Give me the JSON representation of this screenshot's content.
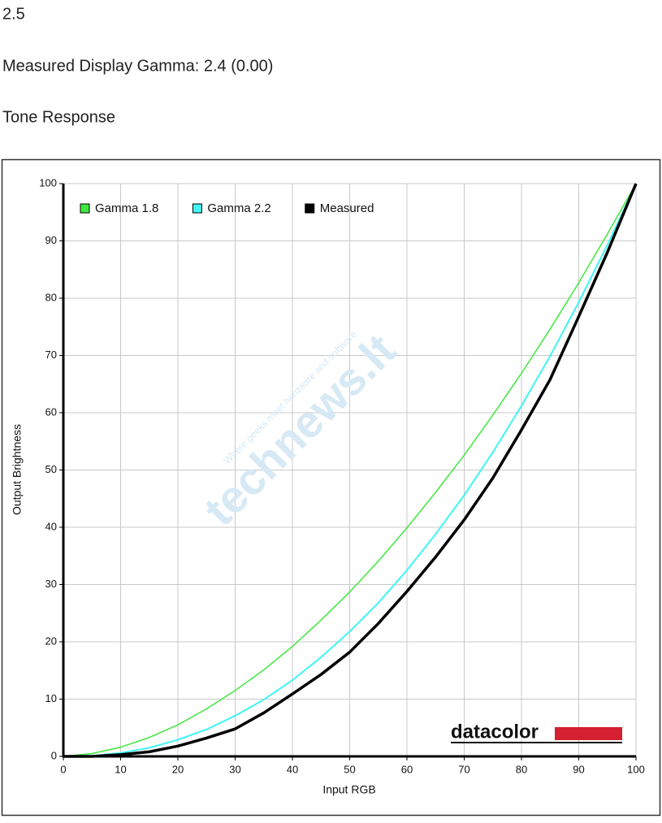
{
  "heading": "2.5",
  "measured_gamma": "Measured Display Gamma: 2.4 (0.00)",
  "section_title": "Tone Response",
  "watermark": {
    "brand": "technews.lt",
    "tagline": "Where geeks meet hardware and software"
  },
  "logo": "datacolor",
  "chart_data": {
    "type": "line",
    "x_label": "Input RGB",
    "y_label": "Output Brightness",
    "x": [
      0,
      5,
      10,
      15,
      20,
      25,
      30,
      35,
      40,
      45,
      50,
      55,
      60,
      65,
      70,
      75,
      80,
      85,
      90,
      95,
      100
    ],
    "series": [
      {
        "name": "Gamma 1.8",
        "color": "#3fe83f",
        "width": 1.5,
        "values": [
          0,
          0.5,
          1.6,
          3.3,
          5.5,
          8.3,
          11.5,
          15.1,
          19.2,
          23.8,
          28.7,
          34.1,
          39.9,
          46.1,
          52.6,
          59.6,
          66.9,
          74.6,
          82.7,
          91.2,
          100
        ]
      },
      {
        "name": "Gamma 2.2",
        "color": "#3ff5f5",
        "width": 2,
        "values": [
          0,
          0.1,
          0.6,
          1.5,
          2.9,
          4.7,
          7.1,
          9.9,
          13.3,
          17.3,
          21.8,
          26.8,
          32.5,
          38.8,
          45.6,
          53.1,
          61.2,
          69.9,
          79.3,
          89.3,
          100
        ]
      },
      {
        "name": "Measured",
        "color": "#000000",
        "width": 3.5,
        "values": [
          0,
          0,
          0.3,
          0.8,
          1.8,
          3.2,
          4.8,
          7.6,
          10.9,
          14.3,
          18.2,
          23.2,
          28.8,
          34.8,
          41.3,
          48.6,
          57.0,
          65.8,
          76.8,
          88.0,
          100
        ]
      }
    ],
    "xlim": [
      0,
      100
    ],
    "ylim": [
      0,
      100
    ],
    "xticks": [
      0,
      10,
      20,
      30,
      40,
      50,
      60,
      70,
      80,
      90,
      100
    ],
    "yticks": [
      0,
      10,
      20,
      30,
      40,
      50,
      60,
      70,
      80,
      90,
      100
    ],
    "grid": true,
    "legend": "top-left"
  }
}
